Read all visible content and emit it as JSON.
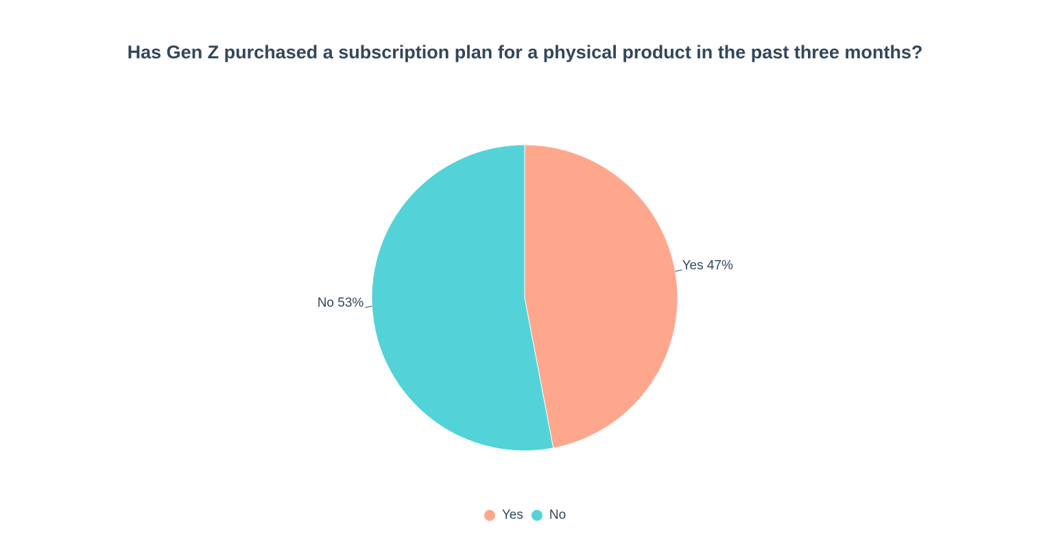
{
  "colors": {
    "text": "#33475b",
    "background": "#ffffff"
  },
  "chart_data": {
    "type": "pie",
    "title": "Has Gen Z purchased a subscription plan for a physical product in the past three months?",
    "slices": [
      {
        "name": "Yes",
        "value": 47,
        "label": "Yes 47%",
        "color": "#ffa78d"
      },
      {
        "name": "No",
        "value": 53,
        "label": "No 53%",
        "color": "#53d3d8"
      }
    ],
    "legend": {
      "position": "bottom-center",
      "items": [
        "Yes",
        "No"
      ]
    },
    "start_angle": "12 o'clock",
    "direction": "clockwise"
  }
}
